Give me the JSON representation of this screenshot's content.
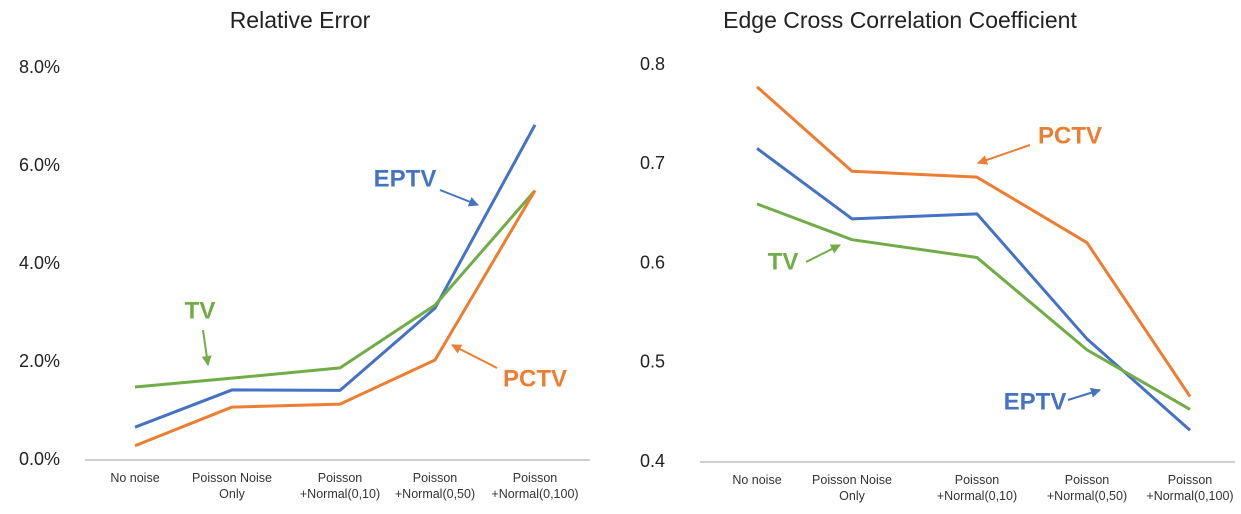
{
  "chart_data": [
    {
      "type": "line",
      "title": "Relative Error",
      "categories": [
        "No noise",
        "Poisson Noise\nOnly",
        "Poisson\n+Normal(0,10)",
        "Poisson\n+Normal(0,50)",
        "Poisson\n+Normal(0,100)"
      ],
      "ylim": [
        0,
        8
      ],
      "yticks": [
        {
          "value": 0,
          "label": "0.0%"
        },
        {
          "value": 2,
          "label": "2.0%"
        },
        {
          "value": 4,
          "label": "4.0%"
        },
        {
          "value": 6,
          "label": "6.0%"
        },
        {
          "value": 8,
          "label": "8.0%"
        }
      ],
      "series": [
        {
          "name": "EPTV",
          "color": "#4472c4",
          "values": [
            0.67,
            1.43,
            1.42,
            3.1,
            6.84
          ]
        },
        {
          "name": "TV",
          "color": "#70ad47",
          "values": [
            1.49,
            1.67,
            1.88,
            3.16,
            5.5
          ]
        },
        {
          "name": "PCTV",
          "color": "#ed7d31",
          "values": [
            0.29,
            1.08,
            1.14,
            2.04,
            5.5
          ]
        }
      ]
    },
    {
      "type": "line",
      "title": "Edge Cross Correlation Coefficient",
      "categories": [
        "No noise",
        "Poisson Noise\nOnly",
        "Poisson\n+Normal(0,10)",
        "Poisson\n+Normal(0,50)",
        "Poisson\n+Normal(0,100)"
      ],
      "ylim": [
        0.4,
        0.8
      ],
      "yticks": [
        0.4,
        0.5,
        0.6,
        0.7,
        0.8
      ],
      "series": [
        {
          "name": "EPTV",
          "color": "#4472c4",
          "values": [
            0.716,
            0.645,
            0.65,
            0.524,
            0.432
          ]
        },
        {
          "name": "TV",
          "color": "#70ad47",
          "values": [
            0.66,
            0.624,
            0.606,
            0.513,
            0.453
          ]
        },
        {
          "name": "PCTV",
          "color": "#ed7d31",
          "values": [
            0.778,
            0.693,
            0.687,
            0.621,
            0.466
          ]
        }
      ]
    }
  ]
}
